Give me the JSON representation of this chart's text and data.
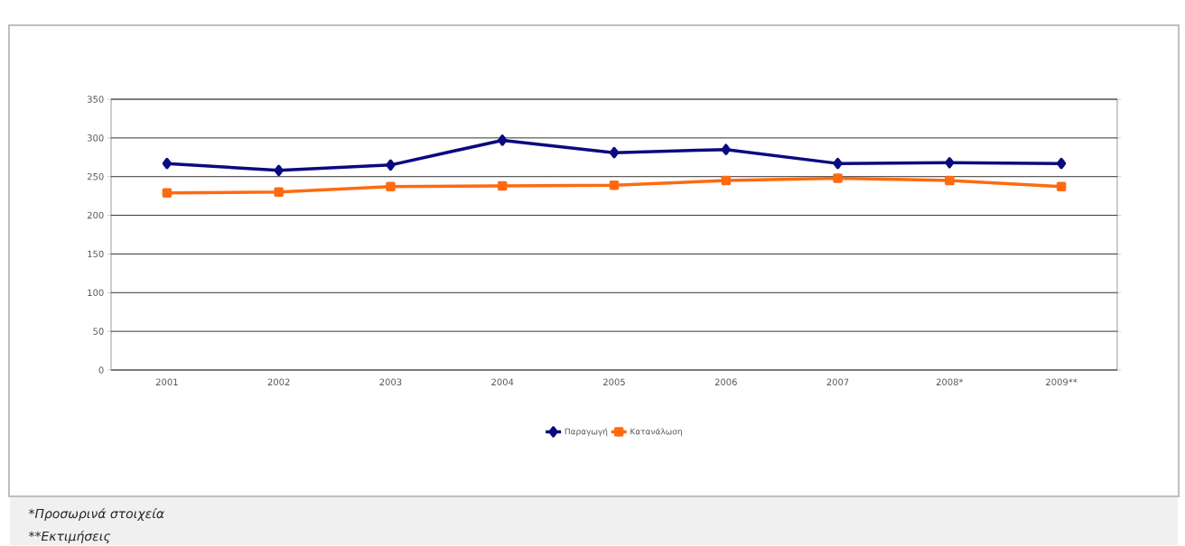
{
  "chart_data": {
    "type": "line",
    "categories": [
      "2001",
      "2002",
      "2003",
      "2004",
      "2005",
      "2006",
      "2007",
      "2008*",
      "2009**"
    ],
    "series": [
      {
        "name": "Παραγωγή",
        "color": "#0a0a80",
        "marker": "diamond",
        "values": [
          267,
          258,
          265,
          297,
          281,
          285,
          267,
          268,
          267
        ]
      },
      {
        "name": "Κατανάλωση",
        "color": "#ff6a10",
        "marker": "square",
        "values": [
          229,
          230,
          237,
          238,
          239,
          245,
          248,
          245,
          237
        ]
      }
    ],
    "ylim": [
      0,
      350
    ],
    "yticks": [
      0,
      50,
      100,
      150,
      200,
      250,
      300,
      350
    ],
    "grid": "y",
    "legend": "bottom",
    "line_style": "solid",
    "annotations": [
      "*Προσωρινά στοιχεία",
      "**Εκτιμήσεις"
    ]
  }
}
